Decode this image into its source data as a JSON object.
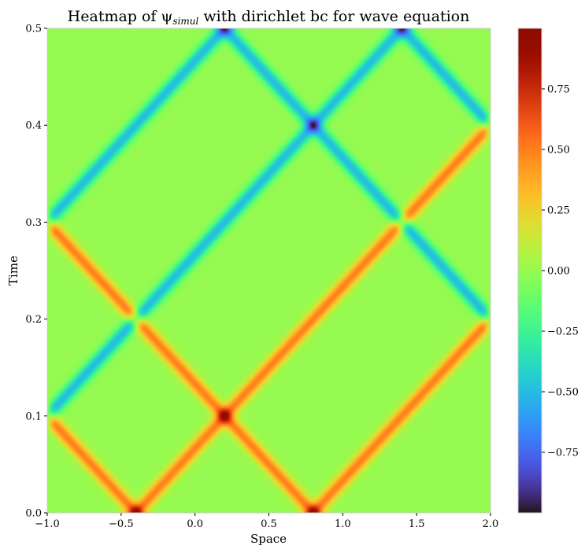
{
  "chart_data": {
    "type": "heatmap",
    "title": "Heatmap of ψ",
    "title_sub": "simul",
    "title_rest": " with dirichlet bc for wave equation",
    "xlabel": "Space",
    "ylabel": "Time",
    "xlim": [
      -1.0,
      2.0
    ],
    "ylim": [
      0.0,
      0.5
    ],
    "xticks": [
      -1.0,
      -0.5,
      0.0,
      0.5,
      1.0,
      1.5,
      2.0
    ],
    "xtick_labels": [
      "−1.0",
      "−0.5",
      "0.0",
      "0.5",
      "1.0",
      "1.5",
      "2.0"
    ],
    "yticks": [
      0.0,
      0.1,
      0.2,
      0.3,
      0.4,
      0.5
    ],
    "ytick_labels": [
      "0.0",
      "0.1",
      "0.2",
      "0.3",
      "0.4",
      "0.5"
    ],
    "colorbar": {
      "vmin": -1.0,
      "vmax": 1.0,
      "ticks": [
        -0.75,
        -0.5,
        -0.25,
        0.0,
        0.25,
        0.5,
        0.75
      ],
      "tick_labels": [
        "−0.75",
        "−0.50",
        "−0.25",
        "0.00",
        "0.25",
        "0.50",
        "0.75"
      ],
      "colormap": "turbo"
    },
    "field": {
      "initial_pulse_centers": [
        -0.4,
        0.8
      ],
      "wave_speed": 6.0,
      "boundaries": [
        -1.0,
        2.0
      ],
      "boundary_condition": "dirichlet"
    }
  },
  "colors": {
    "background": "#ffffff",
    "frame": "#cccccc"
  }
}
